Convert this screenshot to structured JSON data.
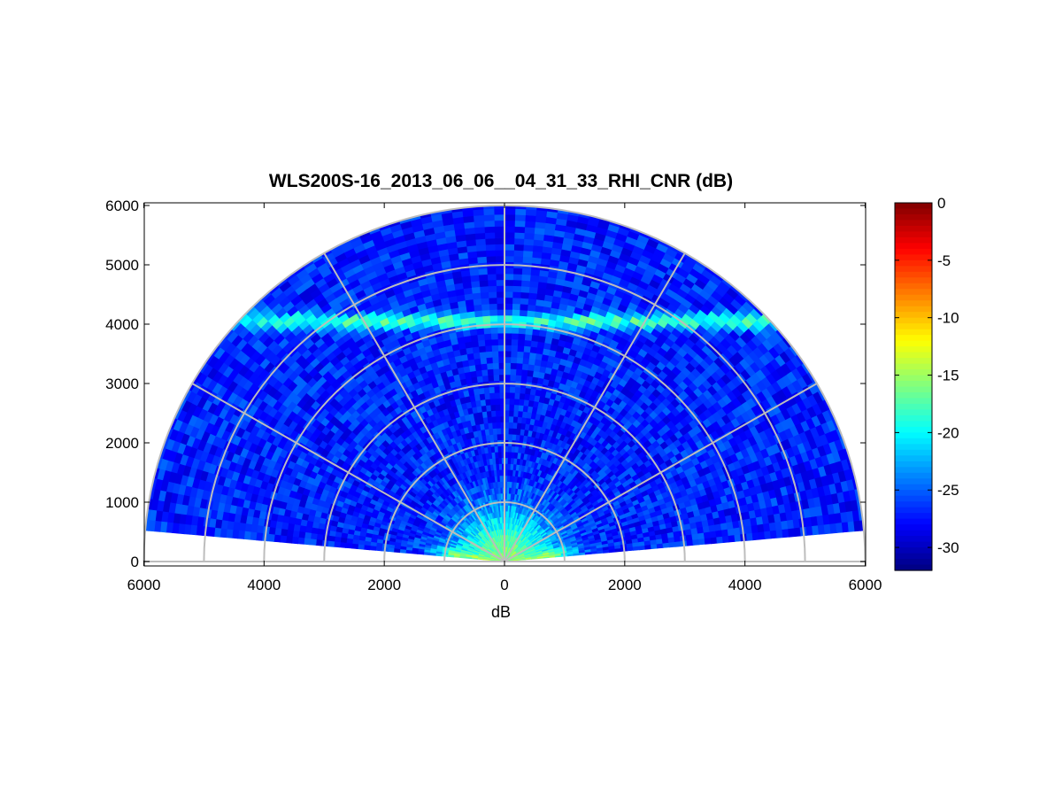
{
  "chart_data": {
    "type": "heatmap",
    "subtype": "polar-rhi-half-disc",
    "title": "WLS200S-16_2013_06_06__04_31_33_RHI_CNR (dB)",
    "xlabel": "dB",
    "ylabel": "",
    "xlim": [
      -6000,
      6000
    ],
    "ylim": [
      0,
      6000
    ],
    "x_ticks": [
      -6000,
      -4000,
      -2000,
      0,
      2000,
      4000,
      6000
    ],
    "x_tick_labels": [
      "6000",
      "4000",
      "2000",
      "0",
      "2000",
      "4000",
      "6000"
    ],
    "y_ticks": [
      0,
      1000,
      2000,
      3000,
      4000,
      5000,
      6000
    ],
    "y_tick_labels": [
      "0",
      "1000",
      "2000",
      "3000",
      "4000",
      "5000",
      "6000"
    ],
    "max_range": 6000,
    "elevation_range_deg": [
      5,
      175
    ],
    "range_rings": [
      1000,
      2000,
      3000,
      4000,
      5000,
      6000
    ],
    "spoke_angles_deg": [
      0,
      30,
      60,
      90,
      120,
      150,
      180
    ],
    "grid": true,
    "colormap": "jet",
    "colorbar": {
      "position": "right",
      "min": -32,
      "max": 0,
      "ticks": [
        0,
        -5,
        -10,
        -15,
        -20,
        -25,
        -30
      ],
      "tick_labels": [
        "0",
        "-5",
        "-10",
        "-15",
        "-20",
        "-25",
        "-30"
      ]
    },
    "features": [
      {
        "description": "background CNR",
        "value_dB": -27
      },
      {
        "description": "enhanced layer at ~4000 m altitude",
        "altitude_m": 4050,
        "value_dB": -18
      },
      {
        "description": "near-range boundary layer, low elevations",
        "range_m": 900,
        "value_dB": -16
      }
    ]
  }
}
